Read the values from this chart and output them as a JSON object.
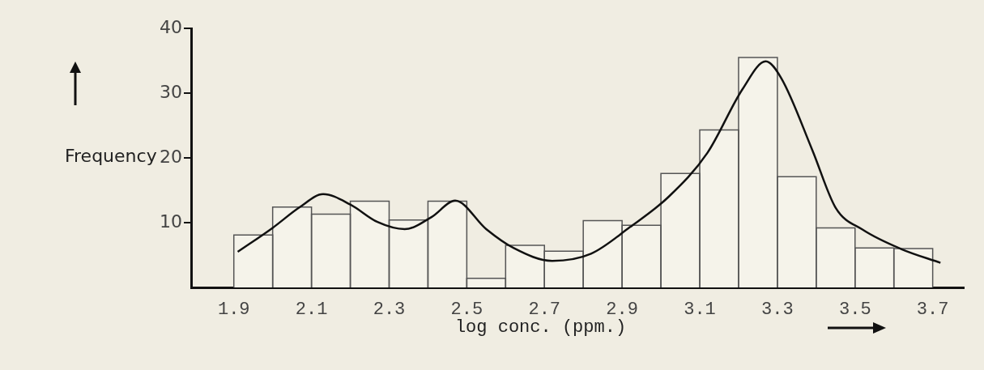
{
  "chart_data": {
    "type": "histogram",
    "xlabel": "log conc. (ppm.)",
    "ylabel": "Frequency",
    "bins": [
      1.9,
      2.0,
      2.1,
      2.2,
      2.3,
      2.4,
      2.5,
      2.6,
      2.7,
      2.8,
      2.9,
      3.0,
      3.1,
      3.2,
      3.3,
      3.4,
      3.5,
      3.6,
      3.7
    ],
    "series": [
      {
        "color": "#f5f3ea",
        "values": [
          8.1,
          12.4,
          11.3,
          13.3,
          10.4,
          13.3,
          1.4,
          6.5,
          5.6,
          10.3,
          9.6,
          17.6,
          24.3,
          35.5,
          17.1,
          9.2,
          6.1,
          6.0
        ]
      },
      {
        "type": "line",
        "color": "#111111",
        "x": [
          1.91,
          2.0,
          2.07,
          2.13,
          2.2,
          2.27,
          2.34,
          2.41,
          2.47,
          2.55,
          2.62,
          2.72,
          2.82,
          2.92,
          3.02,
          3.12,
          3.21,
          3.27,
          3.31,
          3.39,
          3.45,
          3.52,
          3.62,
          3.72
        ],
        "values": [
          5.5,
          9.2,
          12.4,
          14.4,
          12.8,
          10.1,
          9.0,
          10.9,
          13.4,
          9.0,
          6.1,
          4.1,
          5.2,
          9.3,
          14.0,
          20.8,
          30.6,
          34.9,
          32.3,
          21.2,
          12.3,
          8.9,
          5.9,
          3.8
        ]
      }
    ],
    "xlim": [
      1.79,
      3.78
    ],
    "xticks": [
      1.9,
      2.1,
      2.3,
      2.5,
      2.7,
      2.9,
      3.1,
      3.3,
      3.5,
      3.7
    ],
    "ylim": [
      0,
      40
    ],
    "yticks": [
      10,
      20,
      30,
      40
    ],
    "marker": "none",
    "line_style": "solid",
    "legend": false
  }
}
